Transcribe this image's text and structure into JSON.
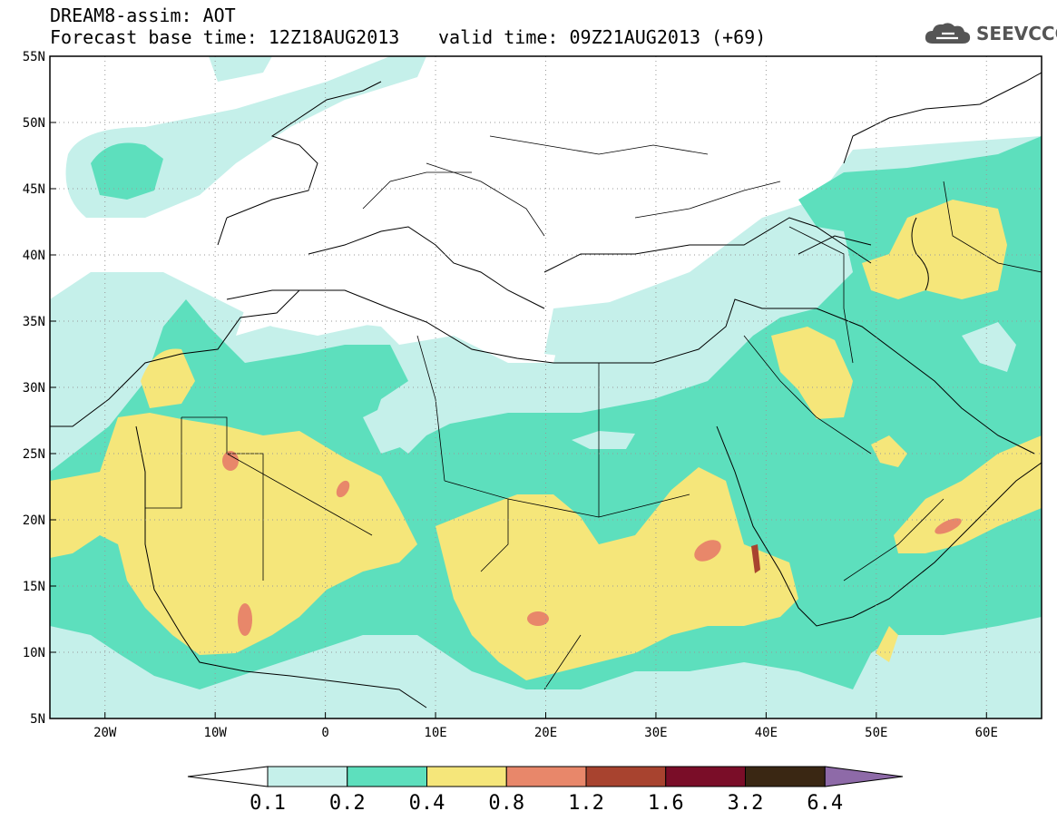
{
  "header": {
    "model_line": "DREAM8-assim: AOT",
    "base_time_line": "Forecast base time: 12Z18AUG2013",
    "valid_time_line": "valid time: 09Z21AUG2013 (+69)",
    "logo_text": "SEEVCCC",
    "logo_icon": "cloud-icon"
  },
  "map": {
    "lon_range": [
      -25,
      65
    ],
    "lat_range": [
      5,
      55
    ],
    "lat_labels": [
      "55N",
      "50N",
      "45N",
      "40N",
      "35N",
      "30N",
      "25N",
      "20N",
      "15N",
      "10N",
      "5N"
    ],
    "lon_labels": [
      "20W",
      "10W",
      "0",
      "10E",
      "20E",
      "30E",
      "40E",
      "50E",
      "60E"
    ],
    "grid": "dotted"
  },
  "colorbar": {
    "labels": [
      "0.1",
      "0.2",
      "0.4",
      "0.8",
      "1.2",
      "1.6",
      "3.2",
      "6.4"
    ],
    "colors": [
      "#ffffff",
      "#c5f0ea",
      "#5ddfbd",
      "#f5e67a",
      "#e8876a",
      "#a8432f",
      "#7a0d28",
      "#3a2713",
      "#8e6aa8"
    ]
  }
}
